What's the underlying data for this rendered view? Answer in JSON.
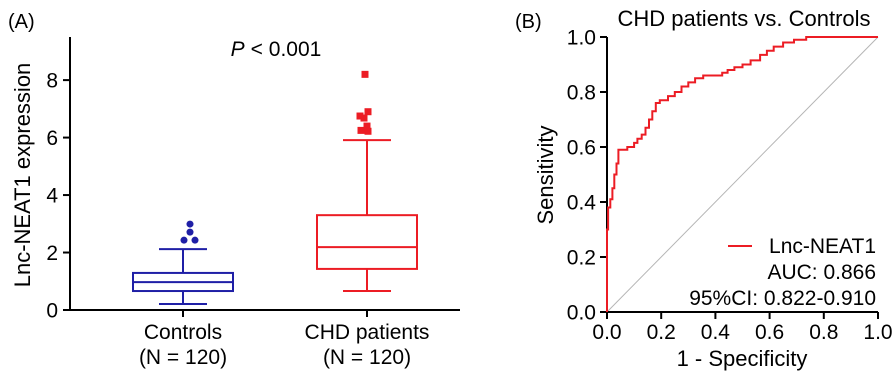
{
  "chart_data": [
    {
      "panel_label": "(A)",
      "type": "box",
      "annotation": {
        "symbol": "P",
        "text": "< 0.001"
      },
      "ylabel": "Lnc-NEAT1 expression",
      "ylim": [
        0,
        9.5
      ],
      "ytick_labels": [
        "0",
        "2",
        "4",
        "6",
        "8"
      ],
      "groups": [
        {
          "name": "Controls",
          "n_label": "(N = 120)",
          "color": "#1f1fa6",
          "marker": "circle",
          "whisker_low": 0.21,
          "q1": 0.66,
          "median": 0.97,
          "q3": 1.29,
          "whisker_high": 2.12,
          "outliers": [
            2.43,
            2.43,
            2.71,
            2.99
          ]
        },
        {
          "name": "CHD patients",
          "n_label": "(N = 120)",
          "color": "#ec1c24",
          "marker": "square",
          "whisker_low": 0.66,
          "q1": 1.43,
          "median": 2.19,
          "q3": 3.3,
          "whisker_high": 5.91,
          "outliers": [
            6.22,
            6.25,
            6.4,
            6.68,
            6.75,
            6.9,
            8.2
          ]
        }
      ]
    },
    {
      "panel_label": "(B)",
      "type": "line",
      "title": "CHD patients vs. Controls",
      "xlabel": "1 - Specificity",
      "ylabel": "Sensitivity",
      "xlim": [
        0,
        1
      ],
      "ylim": [
        0,
        1
      ],
      "xtick_labels": [
        "0.0",
        "0.2",
        "0.4",
        "0.6",
        "0.8",
        "1.0"
      ],
      "ytick_labels": [
        "0.0",
        "0.2",
        "0.4",
        "0.6",
        "0.8",
        "1.0"
      ],
      "grid": false,
      "reference_line": {
        "color": "#b5b5b5",
        "points": [
          [
            0,
            0
          ],
          [
            1,
            1
          ]
        ]
      },
      "series": [
        {
          "name": "Lnc-NEAT1",
          "color": "#ec1c24",
          "points": [
            [
              0,
              0
            ],
            [
              0,
              0.3
            ],
            [
              0.004,
              0.3
            ],
            [
              0.004,
              0.38
            ],
            [
              0.012,
              0.38
            ],
            [
              0.012,
              0.41
            ],
            [
              0.02,
              0.41
            ],
            [
              0.02,
              0.45
            ],
            [
              0.027,
              0.45
            ],
            [
              0.027,
              0.5
            ],
            [
              0.035,
              0.5
            ],
            [
              0.035,
              0.54
            ],
            [
              0.042,
              0.54
            ],
            [
              0.042,
              0.59
            ],
            [
              0.075,
              0.59
            ],
            [
              0.075,
              0.6
            ],
            [
              0.1,
              0.6
            ],
            [
              0.1,
              0.615
            ],
            [
              0.112,
              0.615
            ],
            [
              0.112,
              0.63
            ],
            [
              0.128,
              0.63
            ],
            [
              0.128,
              0.645
            ],
            [
              0.142,
              0.645
            ],
            [
              0.142,
              0.67
            ],
            [
              0.155,
              0.67
            ],
            [
              0.155,
              0.7
            ],
            [
              0.167,
              0.7
            ],
            [
              0.167,
              0.73
            ],
            [
              0.18,
              0.73
            ],
            [
              0.18,
              0.76
            ],
            [
              0.195,
              0.76
            ],
            [
              0.195,
              0.77
            ],
            [
              0.225,
              0.77
            ],
            [
              0.225,
              0.785
            ],
            [
              0.25,
              0.785
            ],
            [
              0.25,
              0.8
            ],
            [
              0.275,
              0.8
            ],
            [
              0.275,
              0.82
            ],
            [
              0.3,
              0.82
            ],
            [
              0.3,
              0.835
            ],
            [
              0.325,
              0.835
            ],
            [
              0.325,
              0.85
            ],
            [
              0.355,
              0.85
            ],
            [
              0.355,
              0.86
            ],
            [
              0.425,
              0.86
            ],
            [
              0.425,
              0.87
            ],
            [
              0.445,
              0.87
            ],
            [
              0.445,
              0.88
            ],
            [
              0.47,
              0.88
            ],
            [
              0.47,
              0.89
            ],
            [
              0.5,
              0.89
            ],
            [
              0.5,
              0.9
            ],
            [
              0.53,
              0.9
            ],
            [
              0.53,
              0.915
            ],
            [
              0.565,
              0.915
            ],
            [
              0.565,
              0.935
            ],
            [
              0.59,
              0.935
            ],
            [
              0.59,
              0.95
            ],
            [
              0.615,
              0.95
            ],
            [
              0.615,
              0.965
            ],
            [
              0.65,
              0.965
            ],
            [
              0.65,
              0.98
            ],
            [
              0.69,
              0.98
            ],
            [
              0.69,
              0.99
            ],
            [
              0.735,
              0.99
            ],
            [
              0.735,
              1.0
            ],
            [
              1,
              1
            ]
          ]
        }
      ],
      "legend": {
        "position": "bottom-right",
        "auc_text": "AUC: 0.866",
        "ci_text": "95%CI: 0.822-0.910"
      }
    }
  ]
}
